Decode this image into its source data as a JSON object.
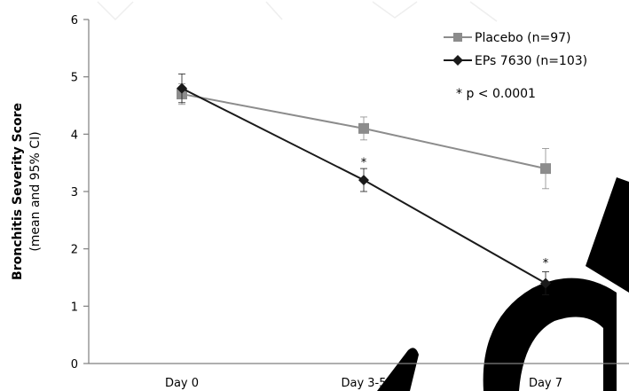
{
  "chart_data": {
    "type": "line",
    "categories": [
      "Day 0",
      "Day 3-5",
      "Day 7"
    ],
    "ylabel_line1": "Bronchitis Severity Score",
    "ylabel_line2": "(mean and 95% CI)",
    "ylim": [
      0,
      6
    ],
    "yticks": [
      "0",
      "1",
      "2",
      "3",
      "4",
      "5",
      "6"
    ],
    "grid": false,
    "legend_position": "top-right",
    "significance_note": "*  p < 0.0001",
    "series": [
      {
        "name": "Placebo (n=97)",
        "color": "#8c8c8c",
        "marker": "square",
        "values": [
          4.7,
          4.1,
          3.4
        ],
        "ci_low": [
          4.52,
          3.9,
          3.05
        ],
        "ci_high": [
          4.88,
          4.3,
          3.75
        ]
      },
      {
        "name": "EPs 7630 (n=103)",
        "color": "#1a1a1a",
        "marker": "diamond",
        "values": [
          4.8,
          3.2,
          1.4
        ],
        "ci_low": [
          4.55,
          3.0,
          1.2
        ],
        "ci_high": [
          5.05,
          3.4,
          1.6
        ]
      }
    ],
    "annotations": [
      {
        "category_index": 1,
        "y": 3.5,
        "text": "*"
      },
      {
        "category_index": 2,
        "y": 1.75,
        "text": "*"
      }
    ]
  }
}
